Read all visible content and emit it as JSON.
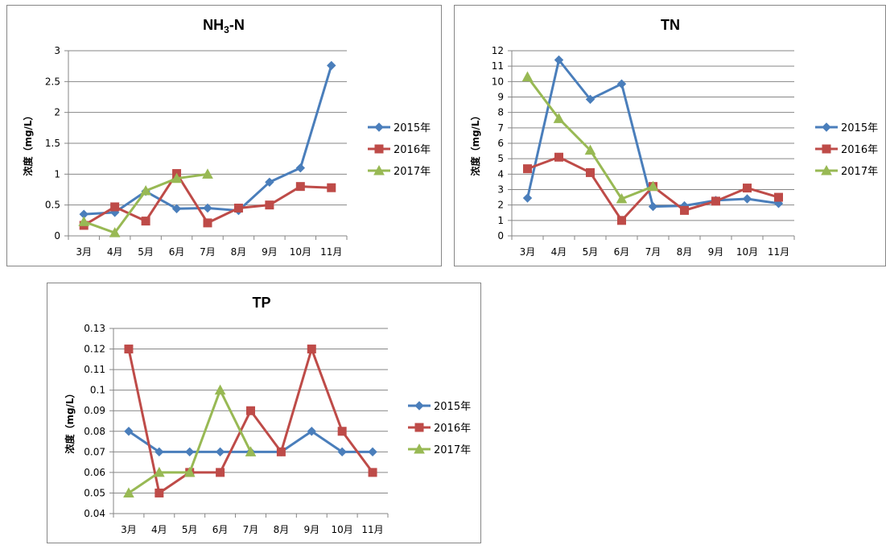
{
  "chart_data": [
    {
      "type": "line",
      "title": "NH₃-N",
      "ylabel": "浓度（mg/L）",
      "xlabel": "",
      "categories": [
        "3月",
        "4月",
        "5月",
        "6月",
        "7月",
        "8月",
        "9月",
        "10月",
        "11月"
      ],
      "ylim": [
        0,
        3
      ],
      "ystep": 0.5,
      "ytick_labels": [
        "0",
        "0.5",
        "1",
        "1.5",
        "2",
        "2.5",
        "3"
      ],
      "grid": true,
      "legend": "right",
      "series": [
        {
          "name": "2015年",
          "color": "#4A7EBB",
          "marker": "diamond",
          "values": [
            0.35,
            0.38,
            0.72,
            0.44,
            0.45,
            0.41,
            0.87,
            1.1,
            2.76
          ]
        },
        {
          "name": "2016年",
          "color": "#BE4B48",
          "marker": "square",
          "values": [
            0.17,
            0.47,
            0.24,
            1.01,
            0.21,
            0.45,
            0.5,
            0.8,
            0.78
          ]
        },
        {
          "name": "2017年",
          "color": "#98B954",
          "marker": "triangle",
          "values": [
            0.23,
            0.05,
            0.73,
            0.93,
            1.0,
            null,
            null,
            null,
            null
          ]
        }
      ]
    },
    {
      "type": "line",
      "title": "TN",
      "ylabel": "浓度（mg/L）",
      "xlabel": "",
      "categories": [
        "3月",
        "4月",
        "5月",
        "6月",
        "7月",
        "8月",
        "9月",
        "10月",
        "11月"
      ],
      "ylim": [
        0,
        12
      ],
      "ystep": 1,
      "ytick_labels": [
        "0",
        "1",
        "2",
        "3",
        "4",
        "5",
        "6",
        "7",
        "8",
        "9",
        "10",
        "11",
        "12"
      ],
      "grid": true,
      "legend": "right",
      "series": [
        {
          "name": "2015年",
          "color": "#4A7EBB",
          "marker": "diamond",
          "values": [
            2.45,
            11.4,
            8.85,
            9.85,
            1.9,
            1.95,
            2.3,
            2.4,
            2.1
          ]
        },
        {
          "name": "2016年",
          "color": "#BE4B48",
          "marker": "square",
          "values": [
            4.35,
            5.1,
            4.1,
            1.0,
            3.2,
            1.65,
            2.25,
            3.1,
            2.5
          ]
        },
        {
          "name": "2017年",
          "color": "#98B954",
          "marker": "triangle",
          "values": [
            10.3,
            7.6,
            5.55,
            2.4,
            3.2,
            null,
            null,
            null,
            null
          ]
        }
      ]
    },
    {
      "type": "line",
      "title": "TP",
      "ylabel": "浓度（mg/L）",
      "xlabel": "",
      "categories": [
        "3月",
        "4月",
        "5月",
        "6月",
        "7月",
        "8月",
        "9月",
        "10月",
        "11月"
      ],
      "ylim": [
        0.04,
        0.13
      ],
      "ystep": 0.01,
      "ytick_labels": [
        "0.04",
        "0.05",
        "0.06",
        "0.07",
        "0.08",
        "0.09",
        "0.1",
        "0.11",
        "0.12",
        "0.13"
      ],
      "grid": true,
      "legend": "right",
      "series": [
        {
          "name": "2015年",
          "color": "#4A7EBB",
          "marker": "diamond",
          "values": [
            0.08,
            0.07,
            0.07,
            0.07,
            0.07,
            0.07,
            0.08,
            0.07,
            0.07
          ]
        },
        {
          "name": "2016年",
          "color": "#BE4B48",
          "marker": "square",
          "values": [
            0.12,
            0.05,
            0.06,
            0.06,
            0.09,
            0.07,
            0.12,
            0.08,
            0.06
          ]
        },
        {
          "name": "2017年",
          "color": "#98B954",
          "marker": "triangle",
          "values": [
            0.05,
            0.06,
            0.06,
            0.1,
            0.07,
            null,
            null,
            null,
            null
          ]
        }
      ]
    }
  ]
}
